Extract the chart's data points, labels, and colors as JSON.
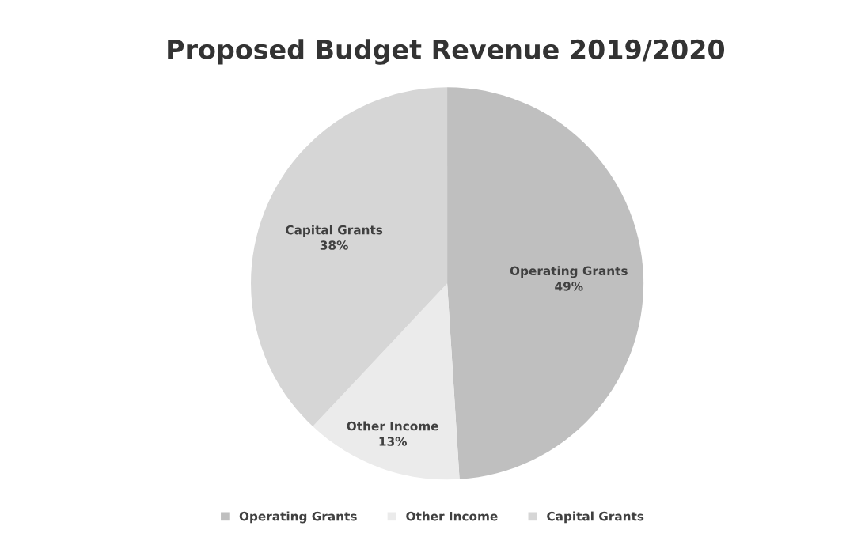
{
  "chart_data": {
    "type": "pie",
    "title": "Proposed Budget Revenue 2019/2020",
    "categories": [
      "Operating Grants",
      "Other Income",
      "Capital Grants"
    ],
    "values": [
      49,
      13,
      38
    ],
    "colors": [
      "#bfbfbf",
      "#ebebeb",
      "#d6d6d6"
    ],
    "value_labels": [
      "49%",
      "13%",
      "38%"
    ],
    "legend": "bottom"
  }
}
